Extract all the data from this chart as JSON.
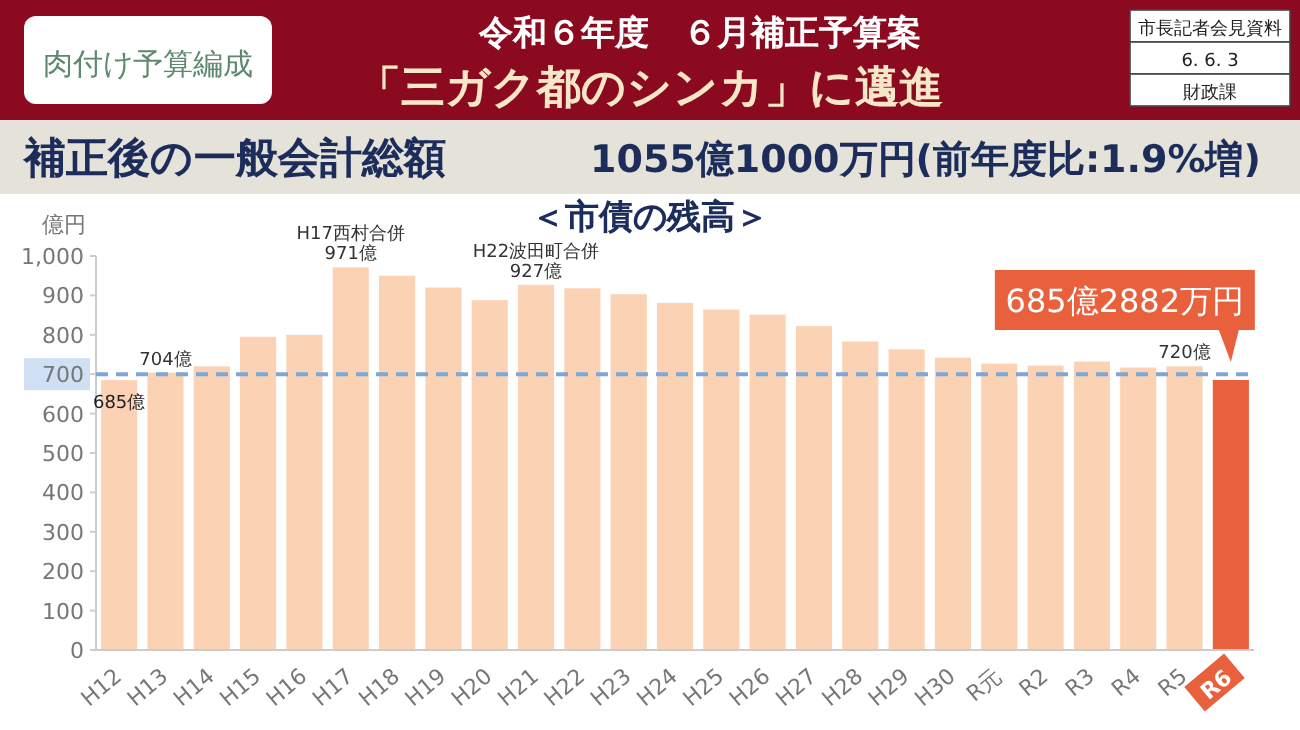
{
  "chart_data": {
    "type": "bar",
    "title": "＜市債の残高＞",
    "ylabel": "億円",
    "categories": [
      "H12",
      "H13",
      "H14",
      "H15",
      "H16",
      "H17",
      "H18",
      "H19",
      "H20",
      "H21",
      "H22",
      "H23",
      "H24",
      "H25",
      "H26",
      "H27",
      "H28",
      "H29",
      "H30",
      "R元",
      "R2",
      "R3",
      "R4",
      "R5",
      "R6"
    ],
    "values": [
      685,
      704,
      720,
      795,
      800,
      971,
      950,
      920,
      888,
      927,
      918,
      903,
      881,
      864,
      851,
      822,
      783,
      763,
      742,
      727,
      722,
      732,
      717,
      720,
      685.2882
    ],
    "colors": [
      "#fbd3b4",
      "#fbd3b4",
      "#fbd3b4",
      "#fbd3b4",
      "#fbd3b4",
      "#fbd3b4",
      "#fbd3b4",
      "#fbd3b4",
      "#fbd3b4",
      "#fbd3b4",
      "#fbd3b4",
      "#fbd3b4",
      "#fbd3b4",
      "#fbd3b4",
      "#fbd3b4",
      "#fbd3b4",
      "#fbd3b4",
      "#fbd3b4",
      "#fbd3b4",
      "#fbd3b4",
      "#fbd3b4",
      "#fbd3b4",
      "#fbd3b4",
      "#fbd3b4",
      "#e8603c"
    ],
    "ylim": [
      0,
      1000
    ],
    "yticks": [
      {
        "value": 0,
        "label": "0"
      },
      {
        "value": 100,
        "label": "100"
      },
      {
        "value": 200,
        "label": "200"
      },
      {
        "value": 300,
        "label": "300"
      },
      {
        "value": 400,
        "label": "400"
      },
      {
        "value": 500,
        "label": "500"
      },
      {
        "value": 600,
        "label": "600"
      },
      {
        "value": 700,
        "label": "700"
      },
      {
        "value": 800,
        "label": "800"
      },
      {
        "value": 900,
        "label": "900"
      },
      {
        "value": 1000,
        "label": "1,000"
      }
    ],
    "ref_lines": [
      {
        "axis": "y",
        "value": 700,
        "color": "#7ea6d8",
        "line_style": "dashed"
      }
    ],
    "grid": false,
    "annotations": [
      "令和６年度　６月補正予算案",
      "「三ガク都のシンカ」に邁進",
      "肉付け予算編成",
      "市長記者会見資料",
      "6. 6. 3",
      "財政課",
      "補正後の一般会計総額",
      "1055億1000万円(前年度比:1.9%増)",
      {
        "text": "685億",
        "x": "H12",
        "y": 685
      },
      {
        "text": "704億",
        "x": "H13",
        "y": 704
      },
      {
        "text": "H17西村合併\n971億",
        "x": "H17",
        "y": 971
      },
      {
        "text": "H22波田町合併\n927億",
        "x": "H21",
        "y": 927
      },
      {
        "text": "720億",
        "x": "R5",
        "y": 720
      },
      {
        "text": "685億2882万円",
        "x": "R6",
        "y": 685.2882
      }
    ]
  }
}
